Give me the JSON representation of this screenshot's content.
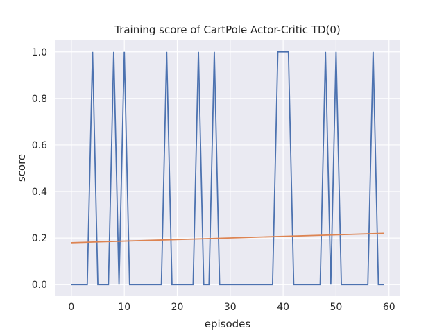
{
  "chart_data": {
    "type": "line",
    "title": "Training score of CartPole Actor-Critic TD(0)",
    "xlabel": "episodes",
    "ylabel": "score",
    "xlim": [
      -3,
      62
    ],
    "ylim": [
      -0.05,
      1.05
    ],
    "xticks": [
      0,
      10,
      20,
      30,
      40,
      50,
      60
    ],
    "xtick_labels": [
      "0",
      "10",
      "20",
      "30",
      "40",
      "50",
      "60"
    ],
    "yticks": [
      0.0,
      0.2,
      0.4,
      0.6,
      0.8,
      1.0
    ],
    "ytick_labels": [
      "0.0",
      "0.2",
      "0.4",
      "0.6",
      "0.8",
      "1.0"
    ],
    "grid": true,
    "background": "#eaeaf2",
    "x": [
      0,
      1,
      2,
      3,
      4,
      5,
      6,
      7,
      8,
      9,
      10,
      11,
      12,
      13,
      14,
      15,
      16,
      17,
      18,
      19,
      20,
      21,
      22,
      23,
      24,
      25,
      26,
      27,
      28,
      29,
      30,
      31,
      32,
      33,
      34,
      35,
      36,
      37,
      38,
      39,
      40,
      41,
      42,
      43,
      44,
      45,
      46,
      47,
      48,
      49,
      50,
      51,
      52,
      53,
      54,
      55,
      56,
      57,
      58,
      59
    ],
    "series": [
      {
        "color": "#4c72b0",
        "values": [
          0,
          0,
          0,
          0,
          1,
          0,
          0,
          0,
          1,
          0,
          1,
          0,
          0,
          0,
          0,
          0,
          0,
          0,
          1,
          0,
          0,
          0,
          0,
          0,
          1,
          0,
          0,
          1,
          0,
          0,
          0,
          0,
          0,
          0,
          0,
          0,
          0,
          0,
          0,
          1,
          1,
          1,
          0,
          0,
          0,
          0,
          0,
          0,
          1,
          0,
          1,
          0,
          0,
          0,
          0,
          0,
          0,
          1,
          0,
          0
        ]
      },
      {
        "color": "#dd8452",
        "x": [
          0,
          59
        ],
        "values": [
          0.18,
          0.22
        ]
      }
    ]
  }
}
